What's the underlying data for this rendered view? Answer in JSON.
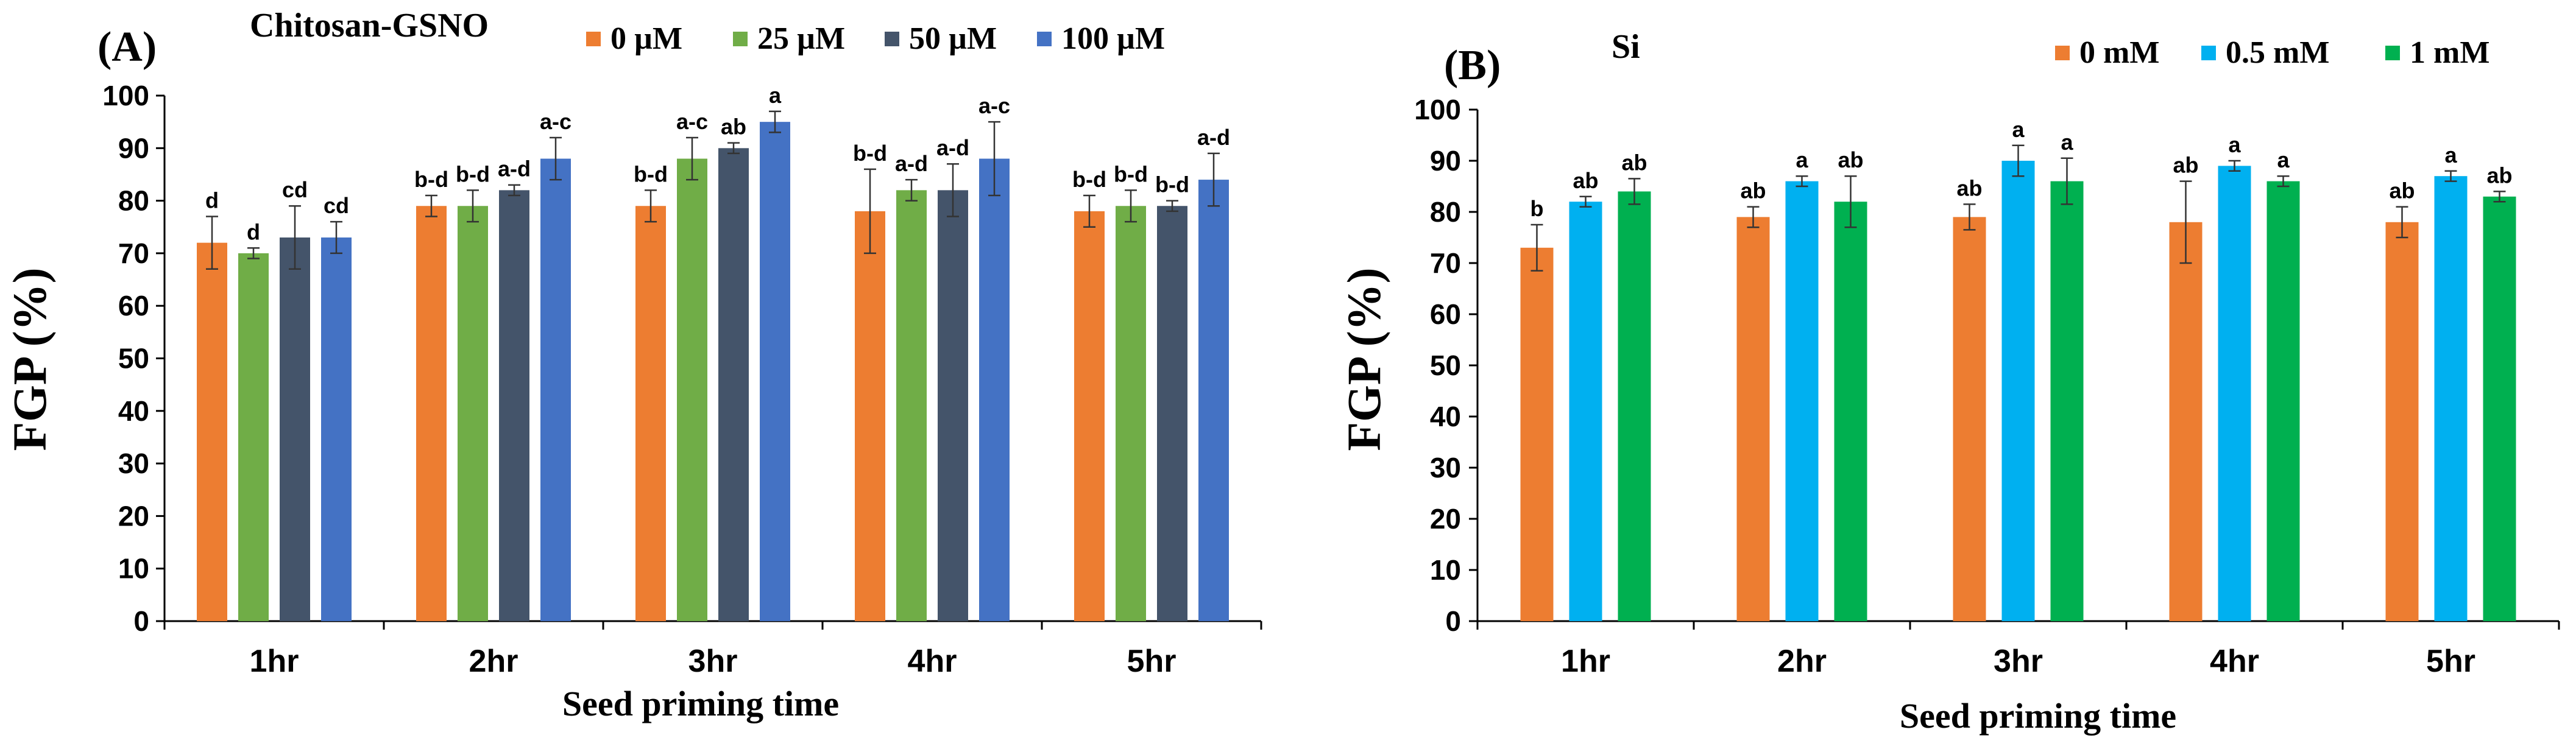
{
  "chart_data": [
    {
      "type": "bar",
      "panel_label": "(A)",
      "title": "Chitosan-GSNO",
      "xlabel": "Seed priming time",
      "ylabel": "FGP (%)",
      "ylim": [
        0,
        100
      ],
      "yticks": [
        0,
        10,
        20,
        30,
        40,
        50,
        60,
        70,
        80,
        90,
        100
      ],
      "categories": [
        "1hr",
        "2hr",
        "3hr",
        "4hr",
        "5hr"
      ],
      "legend_position": "top",
      "series": [
        {
          "name": "0 µM",
          "color": "#ED7D31",
          "values": [
            72,
            79,
            79,
            78,
            78
          ],
          "errors": [
            5,
            2,
            3,
            8,
            3
          ],
          "labels": [
            "d",
            "b-d",
            "b-d",
            "b-d",
            "b-d"
          ]
        },
        {
          "name": "25 µM",
          "color": "#70AD47",
          "values": [
            70,
            79,
            88,
            82,
            79
          ],
          "errors": [
            1,
            3,
            4,
            2,
            3
          ],
          "labels": [
            "d",
            "b-d",
            "a-c",
            "a-d",
            "b-d"
          ]
        },
        {
          "name": "50 µM",
          "color": "#44546A",
          "values": [
            73,
            82,
            90,
            82,
            79
          ],
          "errors": [
            6,
            1,
            1,
            5,
            1
          ],
          "labels": [
            "cd",
            "a-d",
            "ab",
            "a-d",
            "b-d"
          ]
        },
        {
          "name": "100 µM",
          "color": "#4472C4",
          "values": [
            73,
            88,
            95,
            88,
            84
          ],
          "errors": [
            3,
            4,
            2,
            7,
            5
          ],
          "labels": [
            "cd",
            "a-c",
            "a",
            "a-c",
            "a-d"
          ]
        }
      ]
    },
    {
      "type": "bar",
      "panel_label": "(B)",
      "title": "Si",
      "xlabel": "Seed priming time",
      "ylabel": "FGP (%)",
      "ylim": [
        0,
        100
      ],
      "yticks": [
        0,
        10,
        20,
        30,
        40,
        50,
        60,
        70,
        80,
        90,
        100
      ],
      "categories": [
        "1hr",
        "2hr",
        "3hr",
        "4hr",
        "5hr"
      ],
      "legend_position": "top",
      "series": [
        {
          "name": "0 mM",
          "color": "#ED7D31",
          "values": [
            73,
            79,
            79,
            78,
            78
          ],
          "errors": [
            4.5,
            2,
            2.5,
            8,
            3
          ],
          "labels": [
            "b",
            "ab",
            "ab",
            "ab",
            "ab"
          ]
        },
        {
          "name": "0.5 mM",
          "color": "#00B0F0",
          "values": [
            82,
            86,
            90,
            89,
            87
          ],
          "errors": [
            1,
            1,
            3,
            1,
            1
          ],
          "labels": [
            "ab",
            "a",
            "a",
            "a",
            "a"
          ]
        },
        {
          "name": "1 mM",
          "color": "#00B050",
          "values": [
            84,
            82,
            86,
            86,
            83
          ],
          "errors": [
            2.5,
            5,
            4.5,
            1,
            1
          ],
          "labels": [
            "ab",
            "ab",
            "a",
            "a",
            "ab"
          ]
        }
      ]
    }
  ]
}
